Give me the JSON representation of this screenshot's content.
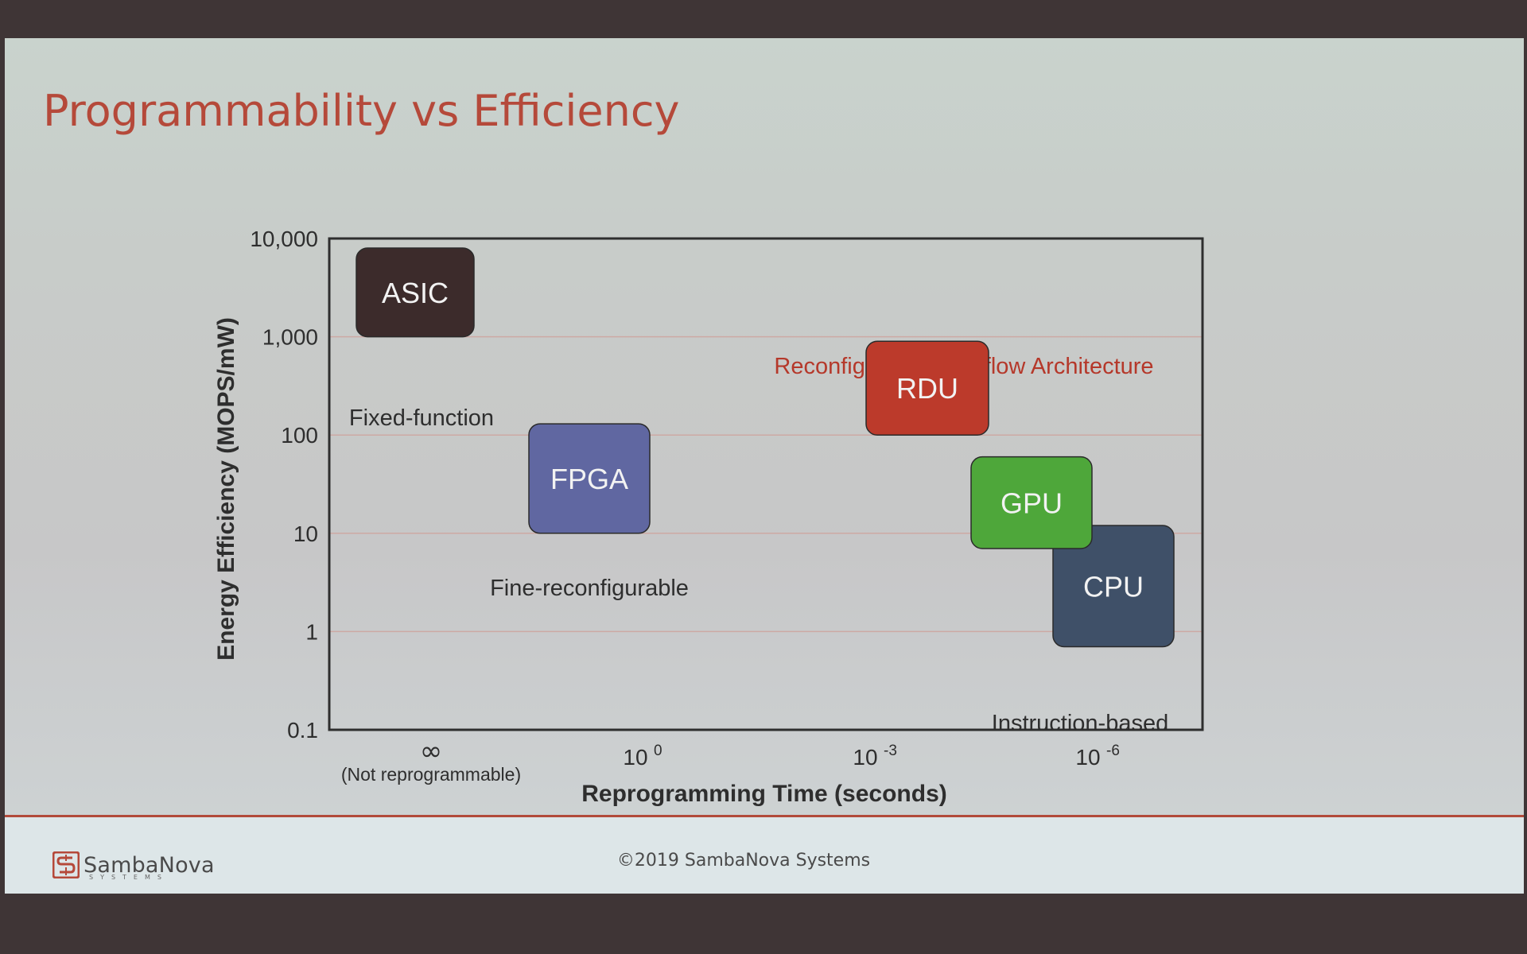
{
  "slide": {
    "title": "Programmability vs Efficiency",
    "copyright": "©2019 SambaNova Systems",
    "logo": {
      "name": "SambaNova",
      "subtext": "SYSTEMS",
      "icon": "sambanova-logo-icon"
    }
  },
  "chart_data": {
    "type": "scatter",
    "xlabel": "Reprogramming Time (seconds)",
    "ylabel": "Energy Efficiency (MOPS/mW)",
    "y_scale": "log",
    "ylim": [
      0.1,
      10000
    ],
    "grid": true,
    "y_ticks": [
      "10,000",
      "1,000",
      "100",
      "10",
      "1",
      "0.1"
    ],
    "x_ticks": [
      {
        "main": "∞",
        "sub": "(Not reprogrammable)"
      },
      {
        "main": "10",
        "sup": "0"
      },
      {
        "main": "10",
        "sup": "-3"
      },
      {
        "main": "10",
        "sup": "-6"
      }
    ],
    "annotation": "Reconfigurable Dataflow Architecture",
    "points": [
      {
        "label": "ASIC",
        "caption": "Fixed-function",
        "color": "#3c2b2b",
        "y_min": 1000,
        "y_max": 8000
      },
      {
        "label": "FPGA",
        "caption": "Fine-reconfigurable",
        "color": "#6067a1",
        "y_min": 10,
        "y_max": 130
      },
      {
        "label": "RDU",
        "caption": "",
        "color": "#bc3a2b",
        "y_min": 100,
        "y_max": 900
      },
      {
        "label": "GPU",
        "caption": "",
        "color": "#4ea73a",
        "y_min": 7,
        "y_max": 60
      },
      {
        "label": "CPU",
        "caption": "Instruction-based",
        "color": "#3f5068",
        "y_min": 0.7,
        "y_max": 12
      }
    ]
  }
}
